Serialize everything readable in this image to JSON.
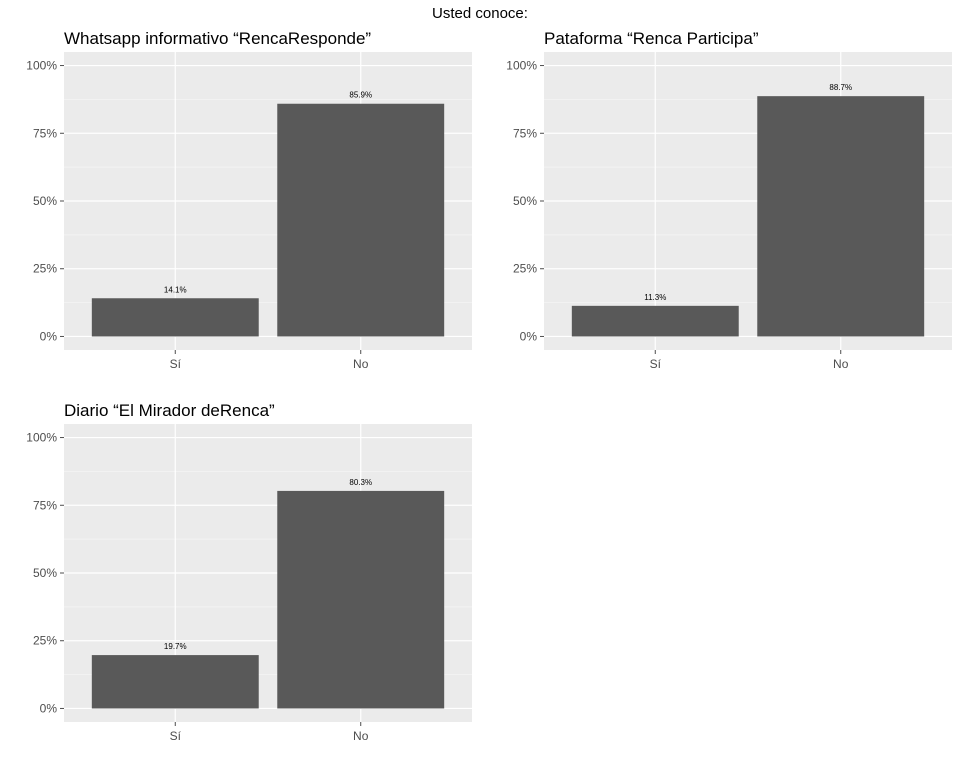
{
  "figure_title": "Usted conoce:",
  "colors": {
    "panel_background": "#ebebeb",
    "grid_major": "#ffffff",
    "grid_minor": "#f5f5f5",
    "bar_fill": "#595959",
    "tick_color": "#4d4d4d"
  },
  "chart_data": [
    {
      "type": "bar",
      "title": "Whatsapp informativo “RencaResponde”",
      "categories": [
        "Sí",
        "No"
      ],
      "values": [
        14.1,
        85.9
      ],
      "data_labels": [
        "14.1%",
        "85.9%"
      ],
      "ylim": [
        0,
        100
      ],
      "y_ticks": [
        0,
        25,
        50,
        75,
        100
      ],
      "y_tick_labels": [
        "0%",
        "25%",
        "50%",
        "75%",
        "100%"
      ],
      "grid": true
    },
    {
      "type": "bar",
      "title": "Pataforma “Renca Participa”",
      "categories": [
        "Sí",
        "No"
      ],
      "values": [
        11.3,
        88.7
      ],
      "data_labels": [
        "11.3%",
        "88.7%"
      ],
      "ylim": [
        0,
        100
      ],
      "y_ticks": [
        0,
        25,
        50,
        75,
        100
      ],
      "y_tick_labels": [
        "0%",
        "25%",
        "50%",
        "75%",
        "100%"
      ],
      "grid": true
    },
    {
      "type": "bar",
      "title": "Diario “El Mirador deRenca”",
      "categories": [
        "Sí",
        "No"
      ],
      "values": [
        19.7,
        80.3
      ],
      "data_labels": [
        "19.7%",
        "80.3%"
      ],
      "ylim": [
        0,
        100
      ],
      "y_ticks": [
        0,
        25,
        50,
        75,
        100
      ],
      "y_tick_labels": [
        "0%",
        "25%",
        "50%",
        "75%",
        "100%"
      ],
      "grid": true
    }
  ]
}
